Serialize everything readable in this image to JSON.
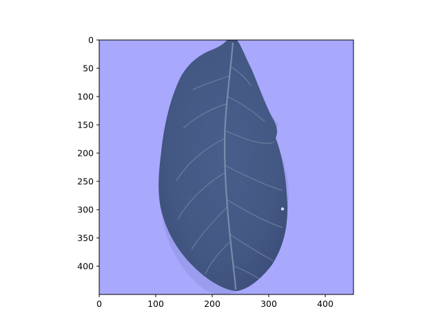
{
  "figure": {
    "image_description_free": true,
    "axes": {
      "x_ticks": [
        "0",
        "100",
        "200",
        "300",
        "400"
      ],
      "y_ticks": [
        "0",
        "50",
        "100",
        "150",
        "200",
        "250",
        "300",
        "350",
        "400"
      ],
      "xlim": [
        0,
        450
      ],
      "ylim": [
        450,
        0
      ],
      "y_inverted": true,
      "x_tick_values": [
        0,
        100,
        200,
        300,
        400
      ],
      "y_tick_values": [
        0,
        50,
        100,
        150,
        200,
        250,
        300,
        350,
        400
      ]
    },
    "colors": {
      "image_background": "#a8a8fc",
      "leaf": "#465a86",
      "leaf_dark": "#3a4d78",
      "vein": "#8a98b4",
      "axis": "#000000"
    }
  }
}
